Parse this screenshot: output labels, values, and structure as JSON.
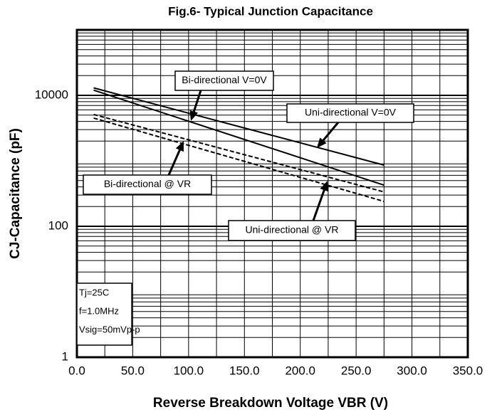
{
  "chart_data": {
    "type": "line",
    "title": "Fig.6- Typical Junction Capacitance",
    "x_label": "Reverse Breakdown Voltage VBR (V)",
    "y_label": "CJ-Capacitance (pF)",
    "x": [
      15,
      275
    ],
    "series": [
      {
        "name": "Uni-directional V=0V",
        "color": "#000000",
        "dash": false,
        "values": [
          13000,
          860
        ]
      },
      {
        "name": "Bi-directional V=0V",
        "color": "#000000",
        "dash": false,
        "values": [
          12000,
          425
        ]
      },
      {
        "name": "Bi-directional @ VR",
        "color": "#000000",
        "dash": true,
        "values": [
          5100,
          335
        ]
      },
      {
        "name": "Uni-directional @ VR",
        "color": "#000000",
        "dash": true,
        "values": [
          4500,
          240
        ]
      }
    ],
    "xlim": [
      0,
      350
    ],
    "xticks": [
      {
        "value": 0,
        "label": "0.0"
      },
      {
        "value": 50,
        "label": "50.0"
      },
      {
        "value": 100,
        "label": "100.0"
      },
      {
        "value": 150,
        "label": "150.0"
      },
      {
        "value": 200,
        "label": "200.0"
      },
      {
        "value": 250,
        "label": "250.0"
      },
      {
        "value": 300,
        "label": "300.0"
      },
      {
        "value": 350,
        "label": "350.0"
      }
    ],
    "ylim": [
      1,
      100000
    ],
    "yticks": [
      1,
      100,
      10000
    ],
    "log_y": true,
    "grid": true,
    "note": [
      "Tj=25C",
      "f=1.0MHz",
      "Vsig=50mVp-p"
    ]
  }
}
